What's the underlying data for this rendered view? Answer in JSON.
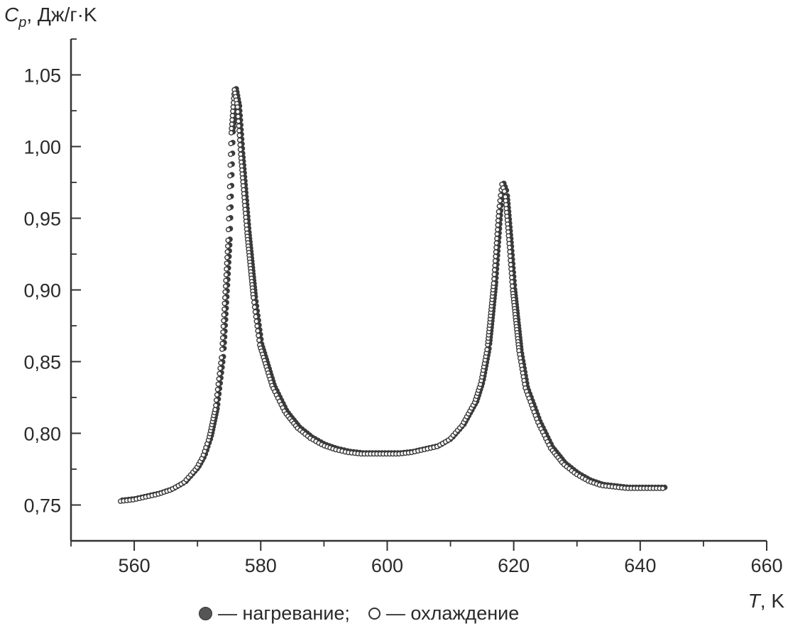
{
  "chart_data": {
    "type": "scatter",
    "ylabel_main": "C",
    "ylabel_sub": "p",
    "ylabel_rest": ", Дж/г·K",
    "xlabel_main": "T",
    "xlabel_rest": ", K",
    "xlim": [
      550,
      660
    ],
    "ylim": [
      0.725,
      1.075
    ],
    "x_ticks": [
      560,
      580,
      600,
      620,
      640,
      660
    ],
    "x_tick_labels": [
      "560",
      "580",
      "600",
      "620",
      "640",
      "660"
    ],
    "x_minor_ticks": [
      550,
      570,
      590,
      610,
      630,
      650
    ],
    "y_ticks": [
      0.75,
      0.8,
      0.85,
      0.9,
      0.95,
      1.0,
      1.05
    ],
    "y_tick_labels": [
      "0,75",
      "0,80",
      "0,85",
      "0,90",
      "0,95",
      "1,00",
      "1,05"
    ],
    "y_minor_ticks": [
      0.775,
      0.825,
      0.875,
      0.925,
      0.975,
      1.025,
      1.075
    ],
    "legend": {
      "heating_label": "— нагревание;",
      "cooling_label": "— охлаждение"
    },
    "series": [
      {
        "name": "нагревание",
        "marker": "filled",
        "x_range": [
          558,
          644
        ],
        "points": [
          [
            558,
            0.753
          ],
          [
            560,
            0.754
          ],
          [
            562,
            0.756
          ],
          [
            564,
            0.758
          ],
          [
            566,
            0.761
          ],
          [
            568,
            0.766
          ],
          [
            570,
            0.776
          ],
          [
            571,
            0.784
          ],
          [
            572,
            0.797
          ],
          [
            573,
            0.818
          ],
          [
            574,
            0.855
          ],
          [
            575,
            0.935
          ],
          [
            575.5,
            1.01
          ],
          [
            576,
            1.04
          ],
          [
            576.5,
            1.028
          ],
          [
            577,
            0.995
          ],
          [
            578,
            0.94
          ],
          [
            579,
            0.895
          ],
          [
            580,
            0.862
          ],
          [
            582,
            0.833
          ],
          [
            584,
            0.815
          ],
          [
            586,
            0.804
          ],
          [
            588,
            0.797
          ],
          [
            590,
            0.792
          ],
          [
            592,
            0.789
          ],
          [
            594,
            0.787
          ],
          [
            596,
            0.786
          ],
          [
            598,
            0.786
          ],
          [
            600,
            0.786
          ],
          [
            602,
            0.786
          ],
          [
            604,
            0.787
          ],
          [
            606,
            0.789
          ],
          [
            608,
            0.791
          ],
          [
            610,
            0.796
          ],
          [
            612,
            0.806
          ],
          [
            614,
            0.822
          ],
          [
            615,
            0.836
          ],
          [
            616,
            0.86
          ],
          [
            617,
            0.905
          ],
          [
            617.8,
            0.955
          ],
          [
            618.3,
            0.974
          ],
          [
            618.8,
            0.968
          ],
          [
            619.5,
            0.93
          ],
          [
            620,
            0.9
          ],
          [
            621,
            0.858
          ],
          [
            622,
            0.832
          ],
          [
            624,
            0.808
          ],
          [
            626,
            0.79
          ],
          [
            628,
            0.779
          ],
          [
            630,
            0.772
          ],
          [
            632,
            0.767
          ],
          [
            634,
            0.764
          ],
          [
            636,
            0.763
          ],
          [
            638,
            0.762
          ],
          [
            640,
            0.762
          ],
          [
            642,
            0.762
          ],
          [
            644,
            0.762
          ]
        ]
      },
      {
        "name": "охлаждение",
        "marker": "open",
        "x_range": [
          558,
          644
        ],
        "points": [
          [
            558,
            0.753
          ],
          [
            560,
            0.754
          ],
          [
            562,
            0.756
          ],
          [
            564,
            0.758
          ],
          [
            566,
            0.761
          ],
          [
            568,
            0.766
          ],
          [
            570,
            0.776
          ],
          [
            571,
            0.784
          ],
          [
            572,
            0.797
          ],
          [
            573,
            0.818
          ],
          [
            574,
            0.855
          ],
          [
            575,
            0.935
          ],
          [
            575.5,
            1.01
          ],
          [
            576,
            1.04
          ],
          [
            576.5,
            1.028
          ],
          [
            577,
            0.995
          ],
          [
            578,
            0.94
          ],
          [
            579,
            0.895
          ],
          [
            580,
            0.862
          ],
          [
            582,
            0.833
          ],
          [
            584,
            0.815
          ],
          [
            586,
            0.804
          ],
          [
            588,
            0.797
          ],
          [
            590,
            0.792
          ],
          [
            592,
            0.789
          ],
          [
            594,
            0.787
          ],
          [
            596,
            0.786
          ],
          [
            598,
            0.786
          ],
          [
            600,
            0.786
          ],
          [
            602,
            0.786
          ],
          [
            604,
            0.787
          ],
          [
            606,
            0.789
          ],
          [
            608,
            0.791
          ],
          [
            610,
            0.796
          ],
          [
            612,
            0.806
          ],
          [
            614,
            0.822
          ],
          [
            615,
            0.836
          ],
          [
            616,
            0.86
          ],
          [
            617,
            0.905
          ],
          [
            617.8,
            0.955
          ],
          [
            618.3,
            0.974
          ],
          [
            618.8,
            0.968
          ],
          [
            619.5,
            0.93
          ],
          [
            620,
            0.9
          ],
          [
            621,
            0.858
          ],
          [
            622,
            0.832
          ],
          [
            624,
            0.808
          ],
          [
            626,
            0.79
          ],
          [
            628,
            0.779
          ],
          [
            630,
            0.772
          ],
          [
            632,
            0.767
          ],
          [
            634,
            0.764
          ],
          [
            636,
            0.763
          ],
          [
            638,
            0.762
          ],
          [
            640,
            0.762
          ],
          [
            642,
            0.762
          ],
          [
            644,
            0.762
          ]
        ]
      }
    ],
    "colors": {
      "axis": "#333333",
      "heating": "#3a3a3a",
      "cooling": "#3a3a3a"
    }
  }
}
